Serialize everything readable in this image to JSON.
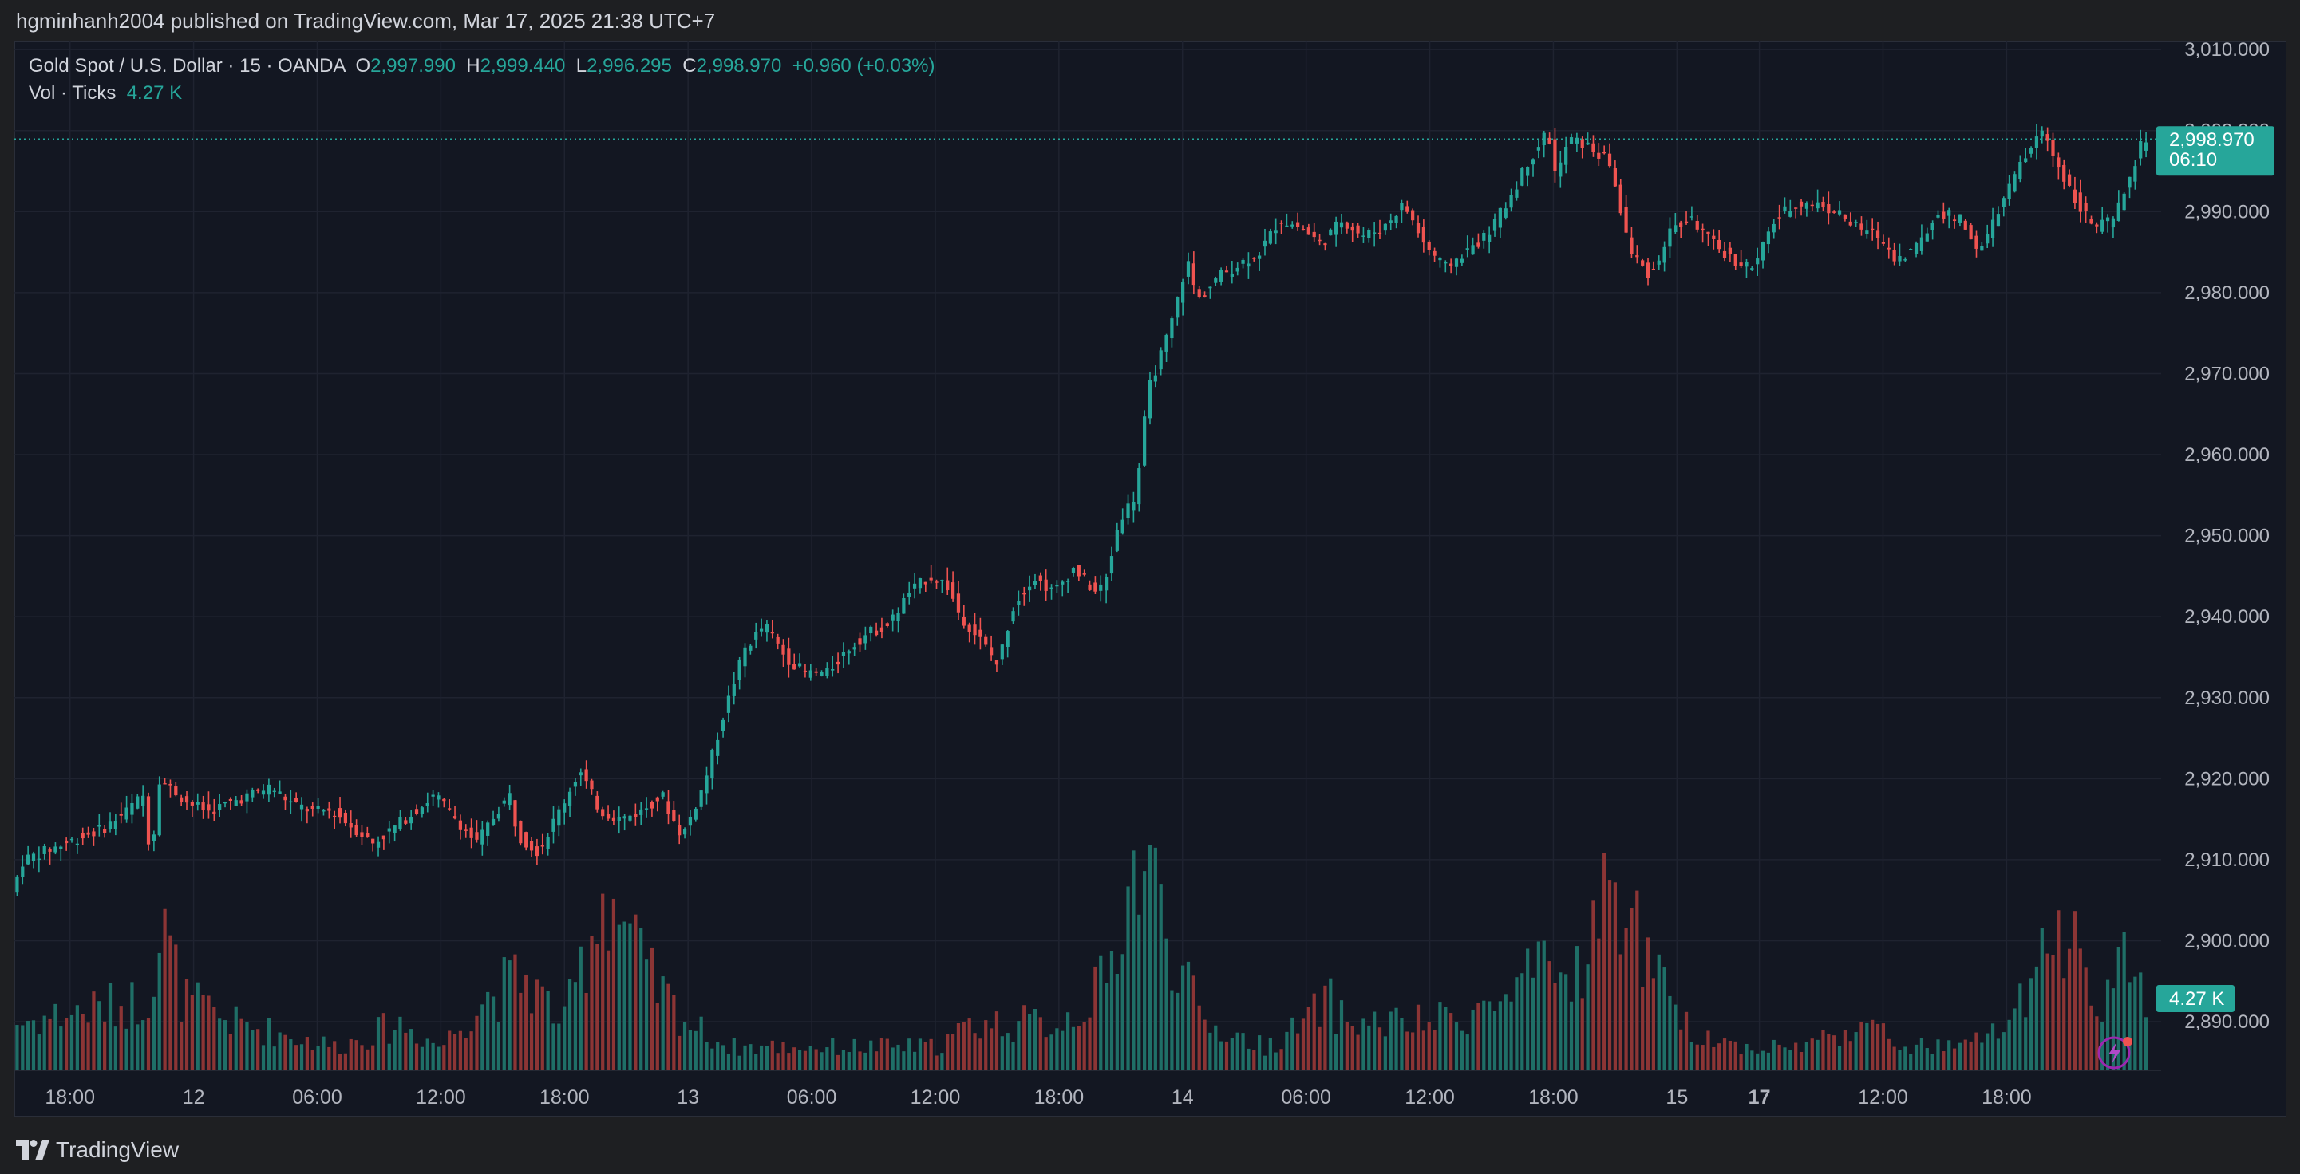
{
  "header": {
    "publisher_line": "hgminhanh2004 published on TradingView.com, Mar 17, 2025 21:38 UTC+7"
  },
  "legend": {
    "symbol": "Gold Spot / U.S. Dollar · 15 · OANDA",
    "o_label": "O",
    "o_value": "2,997.990",
    "h_label": "H",
    "h_value": "2,999.440",
    "l_label": "L",
    "l_value": "2,996.295",
    "c_label": "C",
    "c_value": "2,998.970",
    "change": "+0.960 (+0.03%)",
    "vol_label": "Vol · Ticks",
    "vol_value": "4.27 K"
  },
  "footer": {
    "brand": "TradingView"
  },
  "colors": {
    "up": "#26a69a",
    "down": "#ef5350",
    "background": "#131722",
    "grid": "#1f2330",
    "text": "#b2b5be"
  },
  "chart_data": {
    "type": "candlestick",
    "symbol": "Gold Spot / U.S. Dollar",
    "interval": "15",
    "price_axis_ticks": [
      "3,010.000",
      "3,000.000",
      "2,990.000",
      "2,980.000",
      "2,970.000",
      "2,960.000",
      "2,950.000",
      "2,940.000",
      "2,930.000",
      "2,920.000",
      "2,910.000",
      "2,900.000",
      "2,890.000"
    ],
    "ylim": [
      2884,
      3011
    ],
    "time_axis_ticks": [
      {
        "label": "18:00",
        "t": 12
      },
      {
        "label": "12",
        "t": 18
      },
      {
        "label": "06:00",
        "t": 24
      },
      {
        "label": "12:00",
        "t": 30
      },
      {
        "label": "18:00",
        "t": 36
      },
      {
        "label": "13",
        "t": 42
      },
      {
        "label": "06:00",
        "t": 48
      },
      {
        "label": "12:00",
        "t": 54
      },
      {
        "label": "18:00",
        "t": 60
      },
      {
        "label": "14",
        "t": 66
      },
      {
        "label": "06:00",
        "t": 72
      },
      {
        "label": "12:00",
        "t": 78
      },
      {
        "label": "18:00",
        "t": 84
      },
      {
        "label": "15",
        "t": 90
      },
      {
        "label": "17",
        "t": 94
      },
      {
        "label": "12:00",
        "t": 100
      },
      {
        "label": "18:00",
        "t": 106
      }
    ],
    "xlim": [
      9.3,
      113.5
    ],
    "price_path": [
      [
        9.3,
        2905
      ],
      [
        10,
        2910
      ],
      [
        12,
        2912
      ],
      [
        14,
        2914
      ],
      [
        15,
        2916
      ],
      [
        15.8,
        2918
      ],
      [
        16.2,
        2910
      ],
      [
        16.6,
        2920
      ],
      [
        18,
        2917
      ],
      [
        19,
        2916
      ],
      [
        21,
        2918
      ],
      [
        22,
        2919
      ],
      [
        23,
        2917
      ],
      [
        24,
        2916
      ],
      [
        25,
        2916
      ],
      [
        26,
        2914
      ],
      [
        27,
        2912
      ],
      [
        29,
        2916
      ],
      [
        30,
        2918
      ],
      [
        31,
        2915
      ],
      [
        32,
        2912
      ],
      [
        33,
        2916
      ],
      [
        33.6,
        2918
      ],
      [
        34,
        2913
      ],
      [
        35,
        2911
      ],
      [
        36,
        2916
      ],
      [
        37,
        2921
      ],
      [
        38,
        2916
      ],
      [
        39,
        2915
      ],
      [
        40,
        2916
      ],
      [
        41,
        2918
      ],
      [
        41.7,
        2914
      ],
      [
        42,
        2913
      ],
      [
        43,
        2919
      ],
      [
        44,
        2928
      ],
      [
        45,
        2936
      ],
      [
        46,
        2939
      ],
      [
        47,
        2935
      ],
      [
        48,
        2933
      ],
      [
        49,
        2933
      ],
      [
        50,
        2936
      ],
      [
        51,
        2938
      ],
      [
        52,
        2939
      ],
      [
        53,
        2943
      ],
      [
        54,
        2945
      ],
      [
        54.8,
        2944
      ],
      [
        55.5,
        2940
      ],
      [
        56.5,
        2937
      ],
      [
        57.3,
        2934
      ],
      [
        58,
        2941
      ],
      [
        59,
        2945
      ],
      [
        60,
        2943
      ],
      [
        61,
        2946
      ],
      [
        62,
        2943
      ],
      [
        62.5,
        2944
      ],
      [
        63.2,
        2952
      ],
      [
        64,
        2955
      ],
      [
        64.6,
        2968
      ],
      [
        65.6,
        2975
      ],
      [
        66.5,
        2984
      ],
      [
        67,
        2979
      ],
      [
        68,
        2982
      ],
      [
        70,
        2985
      ],
      [
        71,
        2989
      ],
      [
        72,
        2988
      ],
      [
        73,
        2986
      ],
      [
        74,
        2989
      ],
      [
        75,
        2987
      ],
      [
        76,
        2988
      ],
      [
        77,
        2991
      ],
      [
        78,
        2986
      ],
      [
        79,
        2983
      ],
      [
        80,
        2985
      ],
      [
        81,
        2987
      ],
      [
        82,
        2991
      ],
      [
        83,
        2996
      ],
      [
        84,
        3000
      ],
      [
        84.4,
        2994
      ],
      [
        85,
        2999
      ],
      [
        86,
        2998
      ],
      [
        87,
        2996
      ],
      [
        88,
        2985
      ],
      [
        89,
        2982
      ],
      [
        90,
        2988
      ],
      [
        91,
        2989
      ],
      [
        92,
        2986
      ],
      [
        93,
        2984
      ],
      [
        94,
        2983
      ],
      [
        95,
        2989
      ],
      [
        96,
        2991
      ],
      [
        97,
        2991
      ],
      [
        98,
        2990
      ],
      [
        99,
        2988
      ],
      [
        100,
        2987
      ],
      [
        101,
        2984
      ],
      [
        102,
        2986
      ],
      [
        103,
        2990
      ],
      [
        104,
        2989
      ],
      [
        105,
        2985
      ],
      [
        106,
        2991
      ],
      [
        107,
        2996
      ],
      [
        108,
        3000
      ],
      [
        108.7,
        2996
      ],
      [
        109.5,
        2992
      ],
      [
        110.5,
        2988
      ],
      [
        111.5,
        2989
      ],
      [
        112.2,
        2994
      ],
      [
        112.9,
        2999
      ]
    ],
    "last_price": 2998.97,
    "last_price_label": "2,998.970",
    "countdown_label": "06:10",
    "volume_path": [
      [
        9.3,
        2
      ],
      [
        15.7,
        3
      ],
      [
        16.5,
        6
      ],
      [
        17.5,
        3
      ],
      [
        20,
        2
      ],
      [
        25,
        1
      ],
      [
        28,
        2
      ],
      [
        30,
        1
      ],
      [
        32,
        3
      ],
      [
        34,
        4
      ],
      [
        35,
        3
      ],
      [
        36,
        2
      ],
      [
        37,
        5
      ],
      [
        38,
        8
      ],
      [
        39,
        6
      ],
      [
        40,
        4
      ],
      [
        41,
        3
      ],
      [
        42,
        2
      ],
      [
        44,
        1
      ],
      [
        46,
        1
      ],
      [
        48,
        1
      ],
      [
        50,
        1
      ],
      [
        54,
        1
      ],
      [
        56,
        2
      ],
      [
        58,
        2
      ],
      [
        60,
        2
      ],
      [
        61.5,
        3
      ],
      [
        62.5,
        4
      ],
      [
        63,
        7
      ],
      [
        64,
        9
      ],
      [
        65,
        7
      ],
      [
        66,
        4
      ],
      [
        67,
        2
      ],
      [
        70,
        1
      ],
      [
        72,
        2
      ],
      [
        73,
        3
      ],
      [
        74,
        2
      ],
      [
        78,
        2
      ],
      [
        82,
        3
      ],
      [
        83,
        4
      ],
      [
        85,
        4
      ],
      [
        86,
        6
      ],
      [
        87,
        8
      ],
      [
        88,
        6
      ],
      [
        89,
        4
      ],
      [
        90,
        2
      ],
      [
        93,
        1
      ],
      [
        96,
        1
      ],
      [
        99,
        2
      ],
      [
        101,
        1
      ],
      [
        104,
        1
      ],
      [
        106,
        2
      ],
      [
        107,
        3
      ],
      [
        108,
        5
      ],
      [
        109,
        6
      ],
      [
        110,
        4
      ],
      [
        111,
        3
      ],
      [
        112,
        5
      ],
      [
        113,
        3
      ]
    ],
    "volume_label": "4.27 K",
    "volume_max": 10.5
  }
}
